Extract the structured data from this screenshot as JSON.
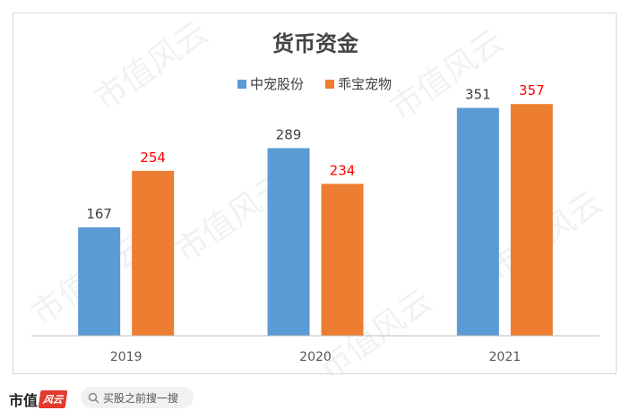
{
  "chart_data": {
    "type": "bar",
    "title": "货币资金",
    "categories": [
      "2019",
      "2020",
      "2021"
    ],
    "series": [
      {
        "name": "中宠股份",
        "values": [
          167,
          289,
          351
        ],
        "color": "#5b9bd5",
        "label_color": "#404040"
      },
      {
        "name": "乖宝宠物",
        "values": [
          254,
          234,
          357
        ],
        "color": "#ed7d31",
        "label_color": "#ff0000"
      }
    ],
    "ylim": [
      0,
      400
    ],
    "grid": false,
    "legend": "top",
    "xlabel": "",
    "ylabel": ""
  },
  "watermark_text": "市值风云",
  "footer": {
    "brand": "市值",
    "brand_stamp": "风云",
    "search_placeholder": "买股之前搜一搜",
    "search_icon": "search-icon"
  }
}
